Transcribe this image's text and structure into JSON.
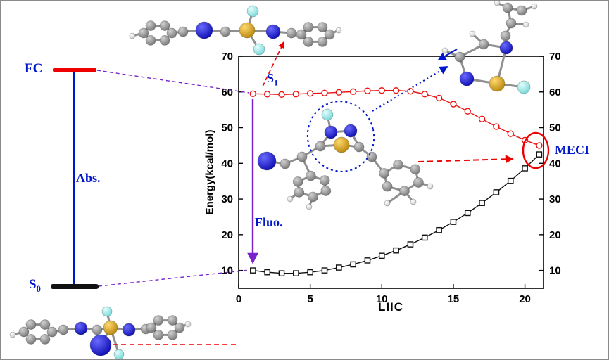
{
  "figure": {
    "background": "#ffffff",
    "border_color": "#8a8a8a"
  },
  "labels": {
    "fc": "FC",
    "s0_level": {
      "base": "S",
      "sub": "0"
    },
    "s1": {
      "base": "S",
      "sub": "1"
    },
    "abs": "Abs.",
    "fluo": "Fluo.",
    "meci": "MECI"
  },
  "colors": {
    "s1_series": "#ee1111",
    "s0_series": "#111111",
    "fc_bar": "#ee0000",
    "s0_bar": "#111111",
    "absorption_line": "#0016cc",
    "annotation_blue": "#0016cc",
    "annotation_purple": "#7722cc",
    "meci_red": "#ee0000"
  },
  "chart_data": {
    "type": "line",
    "title": "",
    "xlabel": "LIIC",
    "ylabel": "Energy(kcal/mol)",
    "xlim": [
      0,
      21.3
    ],
    "ylim": [
      5,
      70
    ],
    "xticks": [
      0,
      5,
      10,
      15,
      20
    ],
    "yticks": [
      10,
      20,
      30,
      40,
      50,
      60,
      70
    ],
    "right_axis_mirror": true,
    "grid": false,
    "legend": "none",
    "annotations": [
      "S₁",
      "Fluo.",
      "MECI",
      "Abs.",
      "FC",
      "S₀"
    ],
    "series": [
      {
        "name": "S1 excited state",
        "marker": "circle",
        "color": "#ee1111",
        "x": [
          1,
          2,
          3,
          4,
          5,
          6,
          7,
          8,
          9,
          10,
          11,
          12,
          13,
          14,
          15,
          16,
          17,
          18,
          19,
          20,
          21
        ],
        "y": [
          59.5,
          59.4,
          59.3,
          59.4,
          59.6,
          59.7,
          59.9,
          60.1,
          60.3,
          60.4,
          60.4,
          60.2,
          59.4,
          58.3,
          56.6,
          54.6,
          52.4,
          50.3,
          48.3,
          46.5,
          45.0
        ]
      },
      {
        "name": "S0 ground state",
        "marker": "square",
        "color": "#111111",
        "x": [
          1,
          2,
          3,
          4,
          5,
          6,
          7,
          8,
          9,
          10,
          11,
          12,
          13,
          14,
          15,
          16,
          17,
          18,
          19,
          20,
          21
        ],
        "y": [
          10.0,
          9.5,
          9.2,
          9.2,
          9.5,
          10.0,
          10.8,
          11.7,
          12.8,
          14.1,
          15.6,
          17.3,
          19.2,
          21.3,
          23.6,
          26.1,
          28.9,
          31.9,
          35.1,
          38.6,
          42.5
        ]
      }
    ]
  }
}
